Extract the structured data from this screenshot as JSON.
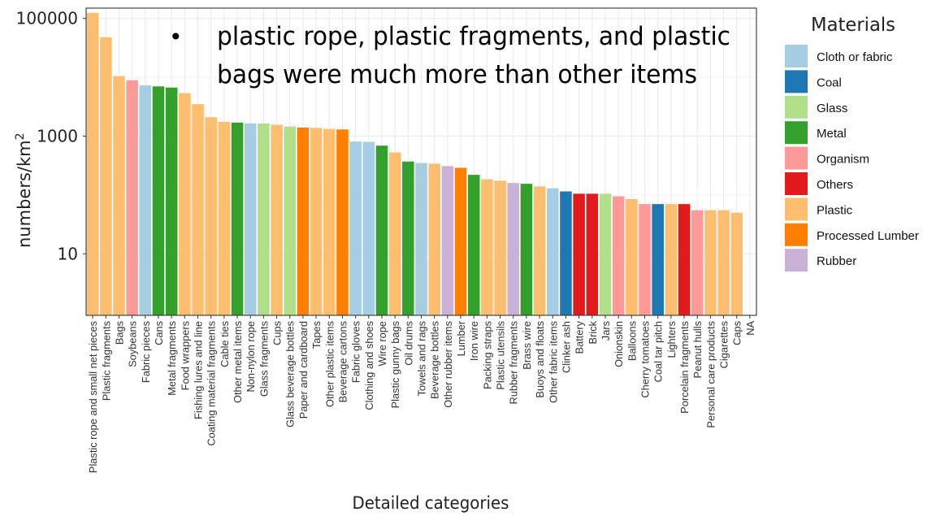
{
  "chart_data": {
    "type": "bar",
    "log_y": true,
    "ylim": [
      0.9,
      150000
    ],
    "yticks": [
      10,
      1000,
      100000
    ],
    "ytick_labels": [
      "10",
      "1000",
      "100000"
    ],
    "ylabel_main": "numbers/km",
    "ylabel_sup": "2",
    "xlabel": "Detailed categories",
    "grid": true,
    "legend": {
      "title": "Materials",
      "position": "right"
    },
    "annotation": {
      "bullet": "•",
      "line1": "plastic rope, plastic fragments, and plastic",
      "line2": "bags were much more than other items"
    },
    "materials": [
      {
        "name": "Cloth or fabric",
        "color": "#a6cee3"
      },
      {
        "name": "Coal",
        "color": "#1f78b4"
      },
      {
        "name": "Glass",
        "color": "#b2df8a"
      },
      {
        "name": "Metal",
        "color": "#33a02c"
      },
      {
        "name": "Organism",
        "color": "#fb9a99"
      },
      {
        "name": "Others",
        "color": "#e31a1c"
      },
      {
        "name": "Plastic",
        "color": "#fdbf6f"
      },
      {
        "name": "Processed Lumber",
        "color": "#ff7f00"
      },
      {
        "name": "Rubber",
        "color": "#cab2d6"
      }
    ],
    "categories": [
      "Plastic rope and small net pieces",
      "Plastic fragments",
      "Bags",
      "Soybeans",
      "Fabric pieces",
      "Cans",
      "Metal fragments",
      "Food wrappers",
      "Fishing lures and line",
      "Coating material fragments",
      "Cable ties",
      "Other metal items",
      "Non-nylon rope",
      "Glass fragments",
      "Cups",
      "Glass beverage bottles",
      "Paper and cardboard",
      "Tapes",
      "Other plastic items",
      "Beverage cartons",
      "Fabric gloves",
      "Clothing and shoes",
      "Wire rope",
      "Plastic gunny bags",
      "Oil drums",
      "Towels and rags",
      "Beverage bottles",
      "Other rubber items",
      "Lumber",
      "Iron wire",
      "Packing straps",
      "Plastic utensils",
      "Rubber fragments",
      "Brass wire",
      "Buoys and floats",
      "Other fabric items",
      "Clinker ash",
      "Battery",
      "Brick",
      "Jars",
      "Onionskin",
      "Balloons",
      "Cherry tomatoes",
      "Coal tar pitch",
      "Lighters",
      "Porcelain fragments",
      "Peanut hulls",
      "Personal care products",
      "Cigarettes",
      "Caps",
      "NA"
    ],
    "material_of": [
      "Plastic",
      "Plastic",
      "Plastic",
      "Organism",
      "Cloth or fabric",
      "Metal",
      "Metal",
      "Plastic",
      "Plastic",
      "Plastic",
      "Plastic",
      "Metal",
      "Cloth or fabric",
      "Glass",
      "Plastic",
      "Glass",
      "Processed Lumber",
      "Plastic",
      "Plastic",
      "Processed Lumber",
      "Cloth or fabric",
      "Cloth or fabric",
      "Metal",
      "Plastic",
      "Metal",
      "Cloth or fabric",
      "Plastic",
      "Rubber",
      "Processed Lumber",
      "Metal",
      "Plastic",
      "Plastic",
      "Rubber",
      "Metal",
      "Plastic",
      "Cloth or fabric",
      "Coal",
      "Others",
      "Others",
      "Glass",
      "Organism",
      "Plastic",
      "Organism",
      "Coal",
      "Plastic",
      "Others",
      "Organism",
      "Plastic",
      "Plastic",
      "Plastic",
      null
    ],
    "values": [
      125000,
      48000,
      10500,
      8900,
      7300,
      7000,
      6700,
      5400,
      3500,
      2100,
      1750,
      1700,
      1650,
      1640,
      1560,
      1460,
      1400,
      1380,
      1330,
      1300,
      810,
      800,
      690,
      530,
      370,
      350,
      340,
      310,
      290,
      220,
      185,
      175,
      160,
      155,
      140,
      130,
      115,
      105,
      105,
      105,
      95,
      85,
      70,
      70,
      70,
      70,
      55,
      55,
      55,
      50,
      null
    ]
  }
}
